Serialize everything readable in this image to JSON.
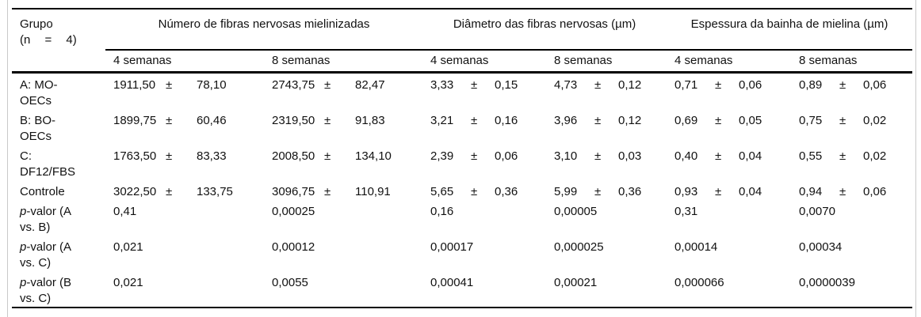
{
  "table": {
    "pm": "±",
    "corner": {
      "line1": "Grupo",
      "line2": "(n = 4)"
    },
    "groups": [
      {
        "label": "Número de fibras nervosas mielinizadas",
        "sub": [
          "4 semanas",
          "8 semanas"
        ]
      },
      {
        "label": "Diâmetro das fibras nervosas (µm)",
        "sub": [
          "4 semanas",
          "8 semanas"
        ]
      },
      {
        "label": "Espessura da bainha de mielina (µm)",
        "sub": [
          "4 semanas",
          "8 semanas"
        ]
      }
    ],
    "subheaders": [
      "4 semanas",
      "8 semanas",
      "4 semanas",
      "8 semanas",
      "4 semanas",
      "8 semanas"
    ],
    "rows": [
      {
        "label": "A: MO-OECs",
        "type": "measure",
        "values": [
          [
            "1911,50",
            "78,10"
          ],
          [
            "2743,75",
            "82,47"
          ],
          [
            "3,33",
            "0,15"
          ],
          [
            "4,73",
            "0,12"
          ],
          [
            "0,71",
            "0,06"
          ],
          [
            "0,89",
            "0,06"
          ]
        ]
      },
      {
        "label": "B: BO-OECs",
        "type": "measure",
        "values": [
          [
            "1899,75",
            "60,46"
          ],
          [
            "2319,50",
            "91,83"
          ],
          [
            "3,21",
            "0,16"
          ],
          [
            "3,96",
            "0,12"
          ],
          [
            "0,69",
            "0,05"
          ],
          [
            "0,75",
            "0,02"
          ]
        ]
      },
      {
        "label": "C: DF12/FBS",
        "type": "measure",
        "values": [
          [
            "1763,50",
            "83,33"
          ],
          [
            "2008,50",
            "134,10"
          ],
          [
            "2,39",
            "0,06"
          ],
          [
            "3,10",
            "0,03"
          ],
          [
            "0,40",
            "0,04"
          ],
          [
            "0,55",
            "0,02"
          ]
        ]
      },
      {
        "label": "Controle",
        "type": "measure",
        "values": [
          [
            "3022,50",
            "133,75"
          ],
          [
            "3096,75",
            "110,91"
          ],
          [
            "5,65",
            "0,36"
          ],
          [
            "5,99",
            "0,36"
          ],
          [
            "0,93",
            "0,04"
          ],
          [
            "0,94",
            "0,06"
          ]
        ]
      },
      {
        "label_italic": "p",
        "label_rest": "-valor (A vs. B)",
        "type": "pvalue",
        "values": [
          "0,41",
          "0,00025",
          "0,16",
          "0,00005",
          "0,31",
          "0,0070"
        ]
      },
      {
        "label_italic": "p",
        "label_rest": "-valor (A vs. C)",
        "type": "pvalue",
        "values": [
          "0,021",
          "0,00012",
          "0,00017",
          "0,000025",
          "0,00014",
          "0,00034"
        ]
      },
      {
        "label_italic": "p",
        "label_rest": "-valor (B vs. C)",
        "type": "pvalue",
        "values": [
          "0,021",
          "0,0055",
          "0,00041",
          "0,00021",
          "0,000066",
          "0,0000039"
        ]
      }
    ]
  }
}
